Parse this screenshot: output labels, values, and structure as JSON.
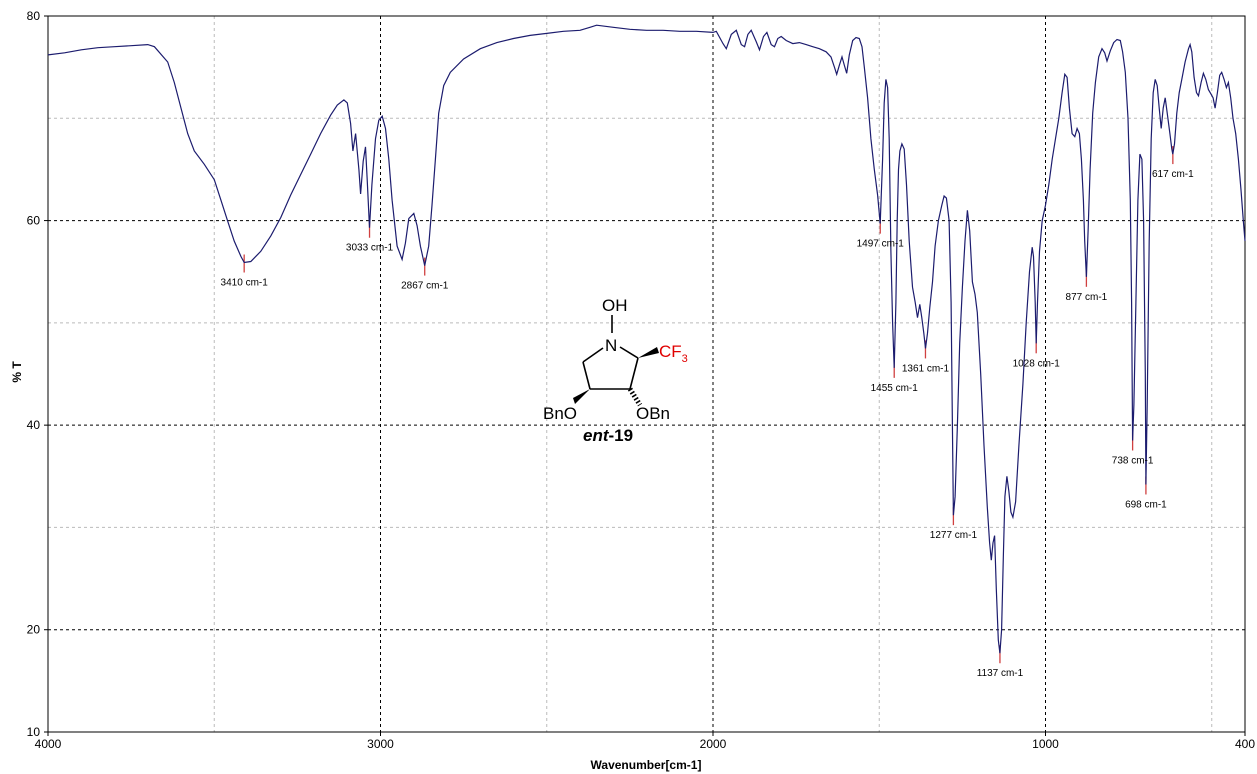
{
  "chart_data": {
    "type": "line",
    "xlabel": "Wavenumber[cm-1]",
    "ylabel": "% T",
    "xlim": [
      4000,
      400
    ],
    "ylim": [
      10,
      80
    ],
    "x_reversed": true,
    "xticks": [
      4000,
      3000,
      2000,
      1000,
      400
    ],
    "yticks": [
      80,
      60,
      40,
      20,
      10
    ],
    "x_minor_grid": [
      3500,
      2500,
      1500,
      500
    ],
    "y_minor_grid": [
      70,
      50,
      30
    ],
    "grid": true,
    "line_color": "#1c1c6e",
    "series": [
      {
        "points": [
          [
            4000,
            76.2
          ],
          [
            3950,
            76.4
          ],
          [
            3900,
            76.7
          ],
          [
            3850,
            76.9
          ],
          [
            3800,
            77.0
          ],
          [
            3750,
            77.1
          ],
          [
            3700,
            77.2
          ],
          [
            3680,
            77.0
          ],
          [
            3640,
            75.5
          ],
          [
            3620,
            73.5
          ],
          [
            3600,
            71.0
          ],
          [
            3580,
            68.5
          ],
          [
            3560,
            66.8
          ],
          [
            3530,
            65.5
          ],
          [
            3500,
            64.0
          ],
          [
            3480,
            62.0
          ],
          [
            3460,
            60.0
          ],
          [
            3440,
            58.0
          ],
          [
            3420,
            56.5
          ],
          [
            3410,
            55.9
          ],
          [
            3390,
            56.0
          ],
          [
            3360,
            57.0
          ],
          [
            3330,
            58.5
          ],
          [
            3300,
            60.3
          ],
          [
            3270,
            62.5
          ],
          [
            3240,
            64.5
          ],
          [
            3210,
            66.5
          ],
          [
            3180,
            68.5
          ],
          [
            3150,
            70.3
          ],
          [
            3130,
            71.3
          ],
          [
            3110,
            71.8
          ],
          [
            3100,
            71.5
          ],
          [
            3090,
            69.5
          ],
          [
            3083,
            66.8
          ],
          [
            3075,
            68.5
          ],
          [
            3065,
            65.0
          ],
          [
            3060,
            62.6
          ],
          [
            3052,
            65.8
          ],
          [
            3045,
            67.2
          ],
          [
            3040,
            64.0
          ],
          [
            3033,
            59.3
          ],
          [
            3026,
            63.5
          ],
          [
            3015,
            68.0
          ],
          [
            3005,
            69.8
          ],
          [
            2995,
            70.2
          ],
          [
            2985,
            69.0
          ],
          [
            2975,
            66.0
          ],
          [
            2965,
            62.0
          ],
          [
            2950,
            57.5
          ],
          [
            2935,
            56.2
          ],
          [
            2925,
            57.8
          ],
          [
            2915,
            60.2
          ],
          [
            2900,
            60.7
          ],
          [
            2890,
            59.5
          ],
          [
            2880,
            57.5
          ],
          [
            2867,
            55.6
          ],
          [
            2855,
            57.5
          ],
          [
            2845,
            61.5
          ],
          [
            2835,
            66.0
          ],
          [
            2825,
            70.5
          ],
          [
            2810,
            73.2
          ],
          [
            2790,
            74.5
          ],
          [
            2750,
            75.8
          ],
          [
            2700,
            76.8
          ],
          [
            2650,
            77.4
          ],
          [
            2600,
            77.8
          ],
          [
            2550,
            78.1
          ],
          [
            2500,
            78.3
          ],
          [
            2450,
            78.5
          ],
          [
            2400,
            78.6
          ],
          [
            2370,
            78.9
          ],
          [
            2350,
            79.1
          ],
          [
            2300,
            78.9
          ],
          [
            2250,
            78.7
          ],
          [
            2200,
            78.6
          ],
          [
            2150,
            78.6
          ],
          [
            2100,
            78.5
          ],
          [
            2050,
            78.5
          ],
          [
            2000,
            78.4
          ],
          [
            1990,
            78.5
          ],
          [
            1970,
            77.3
          ],
          [
            1960,
            76.8
          ],
          [
            1945,
            78.2
          ],
          [
            1930,
            78.6
          ],
          [
            1915,
            77.2
          ],
          [
            1905,
            77.0
          ],
          [
            1895,
            78.2
          ],
          [
            1885,
            78.6
          ],
          [
            1870,
            77.5
          ],
          [
            1860,
            76.7
          ],
          [
            1848,
            78.0
          ],
          [
            1838,
            78.4
          ],
          [
            1825,
            77.2
          ],
          [
            1815,
            77.0
          ],
          [
            1805,
            77.8
          ],
          [
            1795,
            78.0
          ],
          [
            1780,
            77.6
          ],
          [
            1760,
            77.3
          ],
          [
            1740,
            77.4
          ],
          [
            1720,
            77.2
          ],
          [
            1700,
            77.0
          ],
          [
            1680,
            76.8
          ],
          [
            1660,
            76.5
          ],
          [
            1645,
            76.0
          ],
          [
            1635,
            75.0
          ],
          [
            1628,
            74.3
          ],
          [
            1620,
            75.2
          ],
          [
            1612,
            76.0
          ],
          [
            1605,
            75.2
          ],
          [
            1598,
            74.4
          ],
          [
            1590,
            76.2
          ],
          [
            1580,
            77.6
          ],
          [
            1570,
            77.9
          ],
          [
            1560,
            77.8
          ],
          [
            1552,
            77.0
          ],
          [
            1545,
            75.0
          ],
          [
            1535,
            72.0
          ],
          [
            1525,
            68.0
          ],
          [
            1515,
            65.0
          ],
          [
            1505,
            62.5
          ],
          [
            1497,
            59.7
          ],
          [
            1490,
            66.0
          ],
          [
            1485,
            71.5
          ],
          [
            1480,
            73.8
          ],
          [
            1475,
            73.0
          ],
          [
            1470,
            68.0
          ],
          [
            1465,
            57.0
          ],
          [
            1460,
            50.0
          ],
          [
            1455,
            45.6
          ],
          [
            1450,
            52.0
          ],
          [
            1446,
            60.0
          ],
          [
            1442,
            65.0
          ],
          [
            1438,
            66.8
          ],
          [
            1432,
            67.5
          ],
          [
            1425,
            67.0
          ],
          [
            1418,
            63.5
          ],
          [
            1410,
            58.0
          ],
          [
            1400,
            53.5
          ],
          [
            1392,
            52.0
          ],
          [
            1385,
            50.5
          ],
          [
            1378,
            51.8
          ],
          [
            1372,
            50.5
          ],
          [
            1366,
            49.0
          ],
          [
            1361,
            47.5
          ],
          [
            1355,
            49.0
          ],
          [
            1348,
            51.5
          ],
          [
            1340,
            54.0
          ],
          [
            1332,
            57.5
          ],
          [
            1322,
            60.0
          ],
          [
            1312,
            61.5
          ],
          [
            1305,
            62.4
          ],
          [
            1298,
            62.2
          ],
          [
            1290,
            60.0
          ],
          [
            1284,
            52.0
          ],
          [
            1280,
            40.0
          ],
          [
            1277,
            31.2
          ],
          [
            1272,
            33.0
          ],
          [
            1265,
            40.0
          ],
          [
            1258,
            48.0
          ],
          [
            1250,
            53.5
          ],
          [
            1242,
            58.0
          ],
          [
            1235,
            61.0
          ],
          [
            1228,
            59.0
          ],
          [
            1220,
            54.0
          ],
          [
            1212,
            52.8
          ],
          [
            1205,
            51.0
          ],
          [
            1195,
            45.0
          ],
          [
            1185,
            38.0
          ],
          [
            1175,
            32.0
          ],
          [
            1168,
            28.5
          ],
          [
            1163,
            26.8
          ],
          [
            1158,
            28.5
          ],
          [
            1153,
            29.2
          ],
          [
            1148,
            24.0
          ],
          [
            1142,
            19.0
          ],
          [
            1137,
            17.7
          ],
          [
            1132,
            20.0
          ],
          [
            1127,
            27.0
          ],
          [
            1122,
            33.0
          ],
          [
            1116,
            35.0
          ],
          [
            1110,
            33.5
          ],
          [
            1104,
            31.5
          ],
          [
            1098,
            31.0
          ],
          [
            1090,
            32.5
          ],
          [
            1080,
            38.0
          ],
          [
            1068,
            44.0
          ],
          [
            1058,
            50.0
          ],
          [
            1048,
            55.0
          ],
          [
            1040,
            57.4
          ],
          [
            1036,
            56.5
          ],
          [
            1031,
            52.0
          ],
          [
            1028,
            48.0
          ],
          [
            1024,
            52.0
          ],
          [
            1018,
            57.0
          ],
          [
            1010,
            60.0
          ],
          [
            1000,
            61.5
          ],
          [
            990,
            63.5
          ],
          [
            980,
            66.0
          ],
          [
            970,
            68.0
          ],
          [
            960,
            70.0
          ],
          [
            950,
            72.5
          ],
          [
            942,
            74.3
          ],
          [
            935,
            74.0
          ],
          [
            928,
            71.0
          ],
          [
            920,
            68.5
          ],
          [
            912,
            68.2
          ],
          [
            905,
            69.0
          ],
          [
            898,
            68.5
          ],
          [
            892,
            66.0
          ],
          [
            886,
            62.0
          ],
          [
            882,
            58.0
          ],
          [
            877,
            54.5
          ],
          [
            872,
            59.0
          ],
          [
            866,
            65.0
          ],
          [
            858,
            70.5
          ],
          [
            850,
            73.5
          ],
          [
            840,
            76.0
          ],
          [
            830,
            76.8
          ],
          [
            822,
            76.4
          ],
          [
            815,
            75.6
          ],
          [
            805,
            76.6
          ],
          [
            795,
            77.4
          ],
          [
            785,
            77.7
          ],
          [
            775,
            77.6
          ],
          [
            768,
            76.5
          ],
          [
            760,
            74.5
          ],
          [
            752,
            70.0
          ],
          [
            745,
            62.0
          ],
          [
            741,
            52.0
          ],
          [
            738,
            38.5
          ],
          [
            734,
            42.0
          ],
          [
            728,
            52.0
          ],
          [
            722,
            62.0
          ],
          [
            716,
            66.5
          ],
          [
            710,
            66.0
          ],
          [
            705,
            60.0
          ],
          [
            700,
            45.0
          ],
          [
            698,
            34.2
          ],
          [
            694,
            42.0
          ],
          [
            688,
            58.0
          ],
          [
            682,
            68.0
          ],
          [
            676,
            72.5
          ],
          [
            670,
            73.8
          ],
          [
            664,
            73.2
          ],
          [
            658,
            71.0
          ],
          [
            652,
            69.0
          ],
          [
            646,
            71.0
          ],
          [
            640,
            72.0
          ],
          [
            632,
            70.0
          ],
          [
            626,
            68.5
          ],
          [
            620,
            67.0
          ],
          [
            617,
            66.5
          ],
          [
            612,
            67.5
          ],
          [
            605,
            70.5
          ],
          [
            598,
            72.5
          ],
          [
            590,
            73.8
          ],
          [
            580,
            75.5
          ],
          [
            570,
            76.8
          ],
          [
            565,
            77.2
          ],
          [
            560,
            76.5
          ],
          [
            553,
            74.0
          ],
          [
            546,
            72.5
          ],
          [
            540,
            72.2
          ],
          [
            532,
            73.5
          ],
          [
            525,
            74.4
          ],
          [
            518,
            73.8
          ],
          [
            510,
            72.8
          ],
          [
            503,
            72.4
          ],
          [
            496,
            72.0
          ],
          [
            490,
            71.0
          ],
          [
            483,
            72.5
          ],
          [
            476,
            74.2
          ],
          [
            470,
            74.5
          ],
          [
            463,
            73.8
          ],
          [
            456,
            73.0
          ],
          [
            450,
            73.5
          ],
          [
            443,
            72.0
          ],
          [
            436,
            70.0
          ],
          [
            428,
            68.5
          ],
          [
            420,
            66.0
          ],
          [
            412,
            63.0
          ],
          [
            405,
            60.0
          ],
          [
            400,
            58.0
          ]
        ]
      }
    ],
    "peaks": [
      {
        "x": 3410,
        "y": 55.9,
        "label": "3410 cm-1",
        "label_pos": "below"
      },
      {
        "x": 3033,
        "y": 59.3,
        "label": "3033 cm-1",
        "label_pos": "below"
      },
      {
        "x": 2867,
        "y": 55.6,
        "label": "2867 cm-1",
        "label_pos": "below"
      },
      {
        "x": 1497,
        "y": 59.7,
        "label": "1497 cm-1",
        "label_pos": "below"
      },
      {
        "x": 1455,
        "y": 45.6,
        "label": "1455 cm-1",
        "label_pos": "below"
      },
      {
        "x": 1361,
        "y": 47.5,
        "label": "1361 cm-1",
        "label_pos": "below"
      },
      {
        "x": 1277,
        "y": 31.2,
        "label": "1277 cm-1",
        "label_pos": "below"
      },
      {
        "x": 1137,
        "y": 17.7,
        "label": "1137 cm-1",
        "label_pos": "below"
      },
      {
        "x": 1028,
        "y": 48.0,
        "label": "1028 cm-1",
        "label_pos": "below"
      },
      {
        "x": 877,
        "y": 54.5,
        "label": "877 cm-1",
        "label_pos": "below"
      },
      {
        "x": 738,
        "y": 38.5,
        "label": "738 cm-1",
        "label_pos": "below"
      },
      {
        "x": 698,
        "y": 34.2,
        "label": "698 cm-1",
        "label_pos": "below"
      },
      {
        "x": 617,
        "y": 66.5,
        "label": "617 cm-1",
        "label_pos": "below"
      }
    ],
    "annotation": {
      "hydroxyl": "OH",
      "nitrogen": "N",
      "cf3_main": "CF",
      "cf3_sub": "3",
      "left_group": "BnO",
      "right_group": "OBn",
      "compound_prefix": "ent",
      "compound_suffix": "-19"
    },
    "colors": {
      "structure_red": "#e00000",
      "peak_marker": "#d04040",
      "grid_major": "#000000",
      "grid_minor": "#bbbbbb"
    }
  }
}
